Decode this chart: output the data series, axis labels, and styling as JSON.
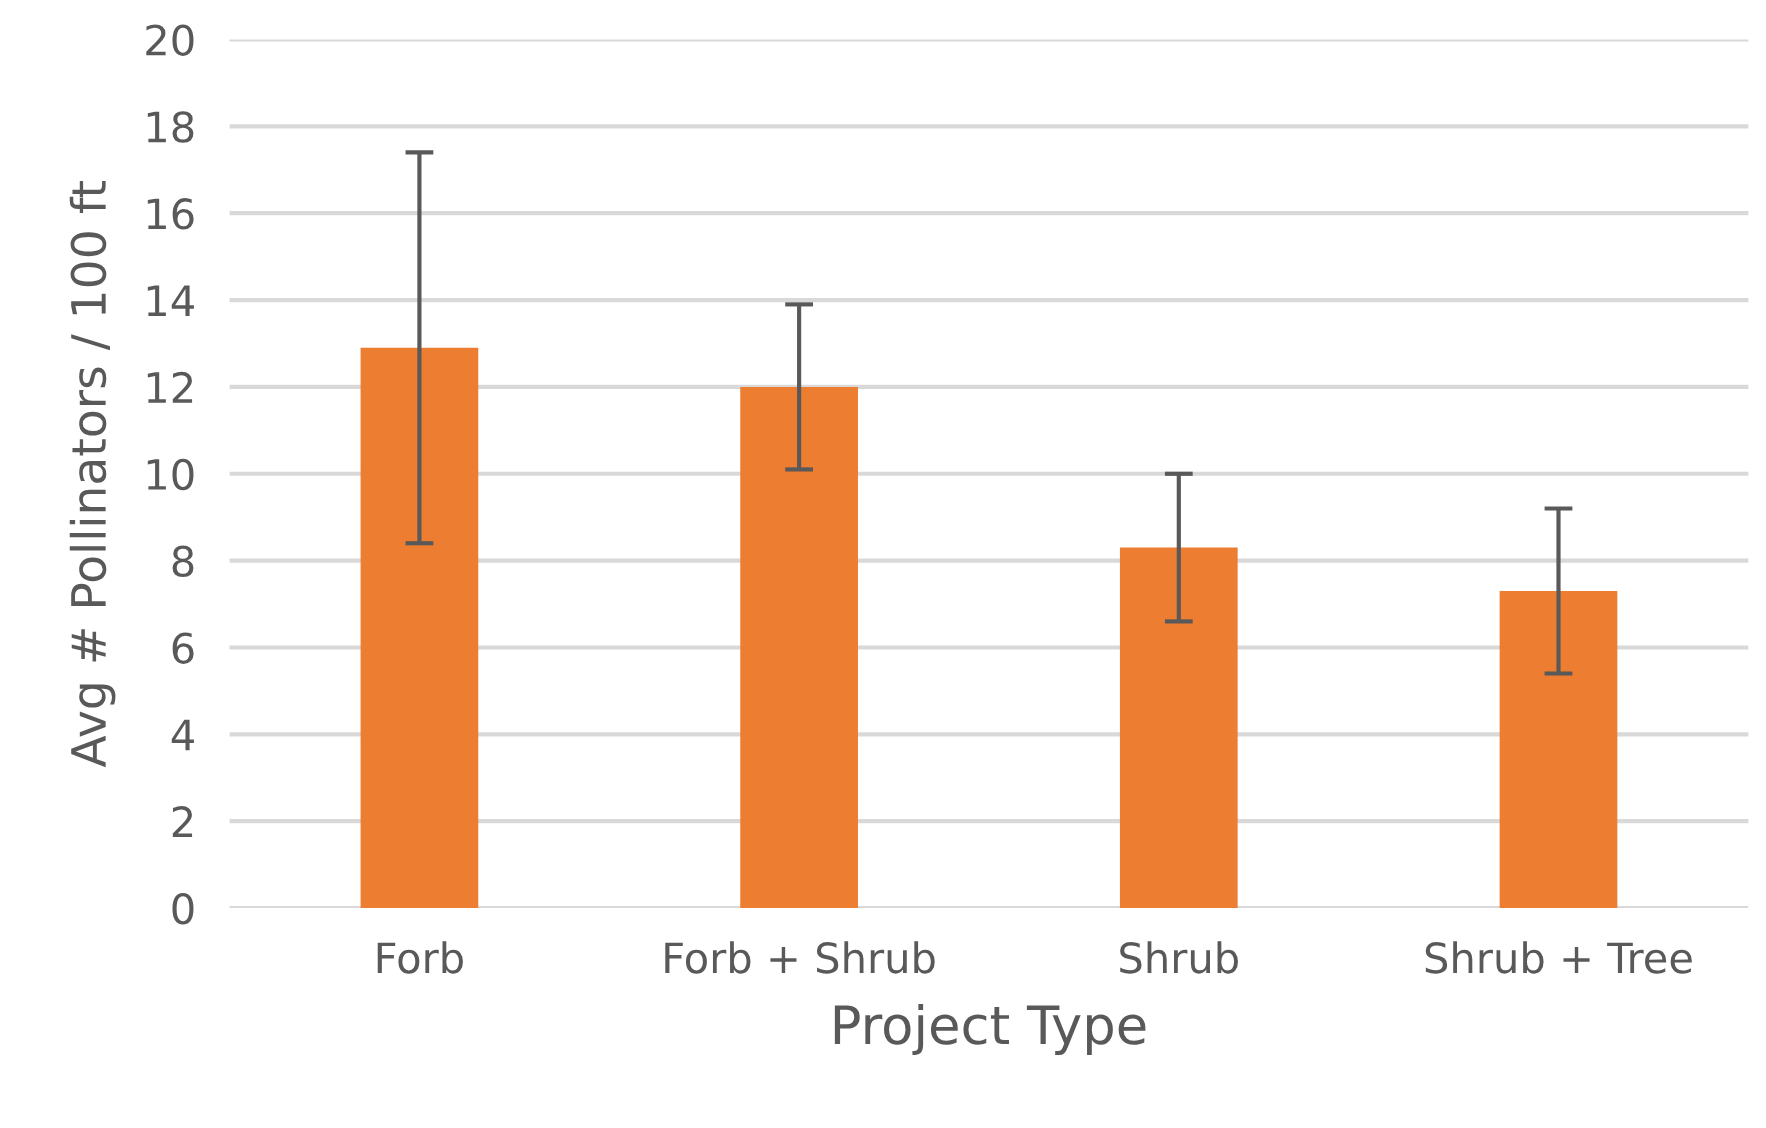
{
  "chart_data": {
    "type": "bar",
    "xlabel": "Project Type",
    "ylabel": "Avg # Pollinators / 100 ft",
    "categories": [
      "Forb",
      "Forb + Shrub",
      "Shrub",
      "Shrub + Tree"
    ],
    "values": [
      12.9,
      12.0,
      8.3,
      7.3
    ],
    "errors": [
      4.5,
      1.9,
      1.7,
      1.9
    ],
    "color": "#ed7d31",
    "ylim": [
      0,
      20
    ],
    "yticks": [
      0,
      2,
      4,
      6,
      8,
      10,
      12,
      14,
      16,
      18,
      20
    ],
    "grid": "y"
  }
}
